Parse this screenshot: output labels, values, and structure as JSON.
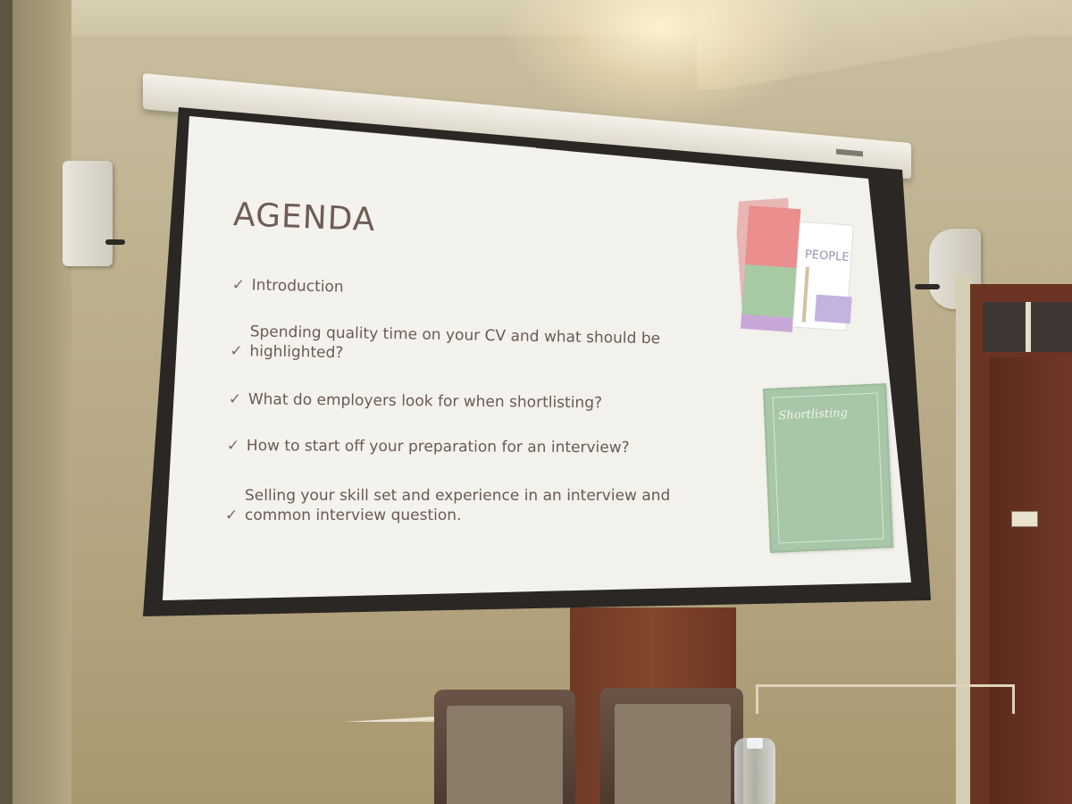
{
  "slide": {
    "title": "AGENDA",
    "check_glyph": "✓",
    "items": [
      "Introduction",
      "Spending quality time on your CV and what should be\nhighlighted?",
      "What do employers look for when shortlisting?",
      "How to start off your preparation for an interview?",
      "Selling your skill set and experience in an interview and\ncommon interview question."
    ],
    "book1_title": "PEOPLE",
    "book2_title": "Shortlisting"
  },
  "colors": {
    "wall": "#bdb08e",
    "screen": "#f2f2ee",
    "screen_border": "#2a2724",
    "slide_text": "#6a5a52",
    "door": "#6a3322"
  }
}
